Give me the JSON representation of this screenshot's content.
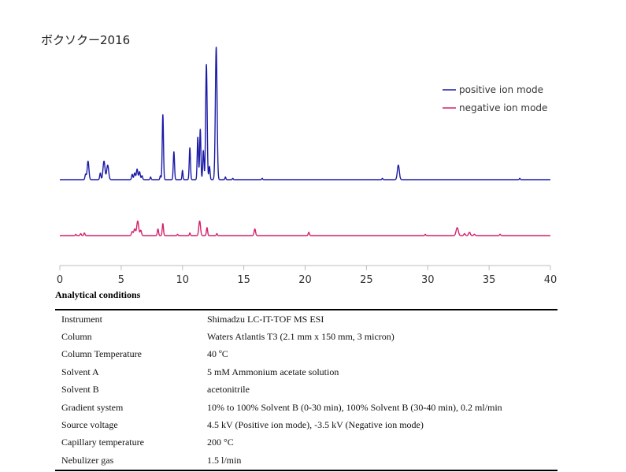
{
  "title": "ボクソクー2016",
  "chart_data": {
    "type": "line",
    "title": "ボクソクー2016",
    "xlabel": "",
    "ylabel": "",
    "xlim": [
      0,
      40
    ],
    "ticks": [
      "0",
      "5",
      "10",
      "15",
      "20",
      "25",
      "30",
      "35",
      "40"
    ],
    "grid": false,
    "legend_position": "top-right",
    "series": [
      {
        "name": "positive ion mode",
        "color": "#1a1aa6",
        "relative_intensity": true,
        "peaks": [
          {
            "x": 2.1,
            "h": 0.04,
            "w": 0.05
          },
          {
            "x": 2.3,
            "h": 0.14,
            "w": 0.07
          },
          {
            "x": 3.3,
            "h": 0.05,
            "w": 0.05
          },
          {
            "x": 3.6,
            "h": 0.14,
            "w": 0.08
          },
          {
            "x": 3.9,
            "h": 0.11,
            "w": 0.08
          },
          {
            "x": 5.9,
            "h": 0.04,
            "w": 0.05
          },
          {
            "x": 6.1,
            "h": 0.05,
            "w": 0.06
          },
          {
            "x": 6.3,
            "h": 0.08,
            "w": 0.06
          },
          {
            "x": 6.5,
            "h": 0.06,
            "w": 0.06
          },
          {
            "x": 6.7,
            "h": 0.03,
            "w": 0.05
          },
          {
            "x": 7.4,
            "h": 0.02,
            "w": 0.04
          },
          {
            "x": 8.4,
            "h": 0.49,
            "w": 0.05
          },
          {
            "x": 8.2,
            "h": 0.03,
            "w": 0.04
          },
          {
            "x": 9.3,
            "h": 0.21,
            "w": 0.05
          },
          {
            "x": 10.0,
            "h": 0.07,
            "w": 0.04
          },
          {
            "x": 10.6,
            "h": 0.24,
            "w": 0.05
          },
          {
            "x": 11.25,
            "h": 0.32,
            "w": 0.05
          },
          {
            "x": 11.45,
            "h": 0.38,
            "w": 0.05
          },
          {
            "x": 11.7,
            "h": 0.22,
            "w": 0.05
          },
          {
            "x": 11.95,
            "h": 0.87,
            "w": 0.06
          },
          {
            "x": 12.2,
            "h": 0.1,
            "w": 0.05
          },
          {
            "x": 12.75,
            "h": 1.0,
            "w": 0.07
          },
          {
            "x": 13.5,
            "h": 0.02,
            "w": 0.04
          },
          {
            "x": 14.1,
            "h": 0.01,
            "w": 0.04
          },
          {
            "x": 16.5,
            "h": 0.01,
            "w": 0.04
          },
          {
            "x": 26.3,
            "h": 0.01,
            "w": 0.04
          },
          {
            "x": 27.6,
            "h": 0.11,
            "w": 0.08
          },
          {
            "x": 37.5,
            "h": 0.01,
            "w": 0.04
          }
        ]
      },
      {
        "name": "negative ion mode",
        "color": "#d4206c",
        "relative_intensity": true,
        "peaks": [
          {
            "x": 1.3,
            "h": 0.01,
            "w": 0.04
          },
          {
            "x": 1.7,
            "h": 0.015,
            "w": 0.05
          },
          {
            "x": 2.0,
            "h": 0.02,
            "w": 0.05
          },
          {
            "x": 5.9,
            "h": 0.03,
            "w": 0.06
          },
          {
            "x": 6.1,
            "h": 0.05,
            "w": 0.07
          },
          {
            "x": 6.35,
            "h": 0.11,
            "w": 0.08
          },
          {
            "x": 6.6,
            "h": 0.04,
            "w": 0.06
          },
          {
            "x": 8.0,
            "h": 0.05,
            "w": 0.05
          },
          {
            "x": 8.4,
            "h": 0.09,
            "w": 0.05
          },
          {
            "x": 9.6,
            "h": 0.01,
            "w": 0.04
          },
          {
            "x": 10.6,
            "h": 0.02,
            "w": 0.04
          },
          {
            "x": 11.4,
            "h": 0.11,
            "w": 0.07
          },
          {
            "x": 12.0,
            "h": 0.06,
            "w": 0.05
          },
          {
            "x": 12.8,
            "h": 0.015,
            "w": 0.04
          },
          {
            "x": 15.9,
            "h": 0.05,
            "w": 0.06
          },
          {
            "x": 20.3,
            "h": 0.025,
            "w": 0.05
          },
          {
            "x": 29.8,
            "h": 0.01,
            "w": 0.04
          },
          {
            "x": 32.4,
            "h": 0.06,
            "w": 0.09
          },
          {
            "x": 33.0,
            "h": 0.015,
            "w": 0.06
          },
          {
            "x": 33.4,
            "h": 0.025,
            "w": 0.07
          },
          {
            "x": 33.8,
            "h": 0.01,
            "w": 0.06
          },
          {
            "x": 35.9,
            "h": 0.01,
            "w": 0.05
          }
        ]
      }
    ]
  },
  "conditions": {
    "heading": "Analytical conditions",
    "rows": [
      {
        "label": "Instrument",
        "value": "Shimadzu LC-IT-TOF MS ESI"
      },
      {
        "label": "Column",
        "value": "Waters Atlantis T3 (2.1 mm x 150 mm, 3 micron)"
      },
      {
        "label": "Column Temperature",
        "value": "40 ºC"
      },
      {
        "label": "Solvent A",
        "value": "5 mM Ammonium acetate solution"
      },
      {
        "label": "Solvent B",
        "value": "acetonitrile"
      },
      {
        "label": "Gradient system",
        "value": "10% to 100% Solvent B (0-30 min), 100% Solvent B (30-40 min), 0.2 ml/min"
      },
      {
        "label": "Source voltage",
        "value": "4.5 kV (Positive ion mode), -3.5 kV (Negative ion mode)"
      },
      {
        "label": "Capillary temperature",
        "value": "200 °C"
      },
      {
        "label": "Nebulizer gas",
        "value": "1.5 l/min"
      }
    ]
  }
}
